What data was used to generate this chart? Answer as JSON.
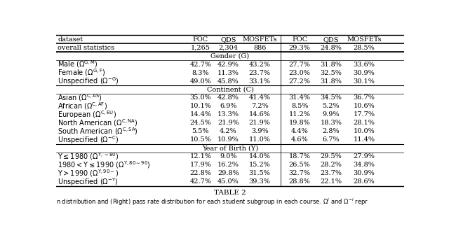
{
  "title": "TABLE 2",
  "caption": "n distribution and (Right) pass rate distribution for each student subgroup in each course. $\\Omega^{I}$ and $\\Omega^{-I}$ repr",
  "header_row": [
    "dataset",
    "FOC",
    "QDS",
    "MOSFETs",
    "FOC",
    "QDS",
    "MOSFETs"
  ],
  "overall_row": [
    "overall statistics",
    "1,265",
    "2,304",
    "886",
    "29.3%",
    "24.8%",
    "28.5%"
  ],
  "sections": [
    {
      "name": "Gender (G)",
      "rows": [
        [
          "$\\mathrm{Male\\ (\\Omega^{G,M})}$",
          "42.7%",
          "42.9%",
          "43.2%",
          "27.7%",
          "31.8%",
          "33.6%"
        ],
        [
          "$\\mathrm{Female\\ (\\Omega^{G,F})}$",
          "8.3%",
          "11.3%",
          "23.7%",
          "23.0%",
          "32.5%",
          "30.9%"
        ],
        [
          "$\\mathrm{Unspecified\\ (\\Omega^{-G})}$",
          "49.0%",
          "45.8%",
          "33.1%",
          "27.2%",
          "31.8%",
          "30.1%"
        ]
      ]
    },
    {
      "name": "Continent (C)",
      "rows": [
        [
          "$\\mathrm{Asian\\ (\\Omega^{C,AS})}$",
          "35.0%",
          "42.8%",
          "41.4%",
          "31.4%",
          "34.5%",
          "36.7%"
        ],
        [
          "$\\mathrm{African\\ (\\Omega^{C,AF})}$",
          "10.1%",
          "6.9%",
          "7.2%",
          "8.5%",
          "5.2%",
          "10.6%"
        ],
        [
          "$\\mathrm{European\\ (\\Omega^{C,EU})}$",
          "14.4%",
          "13.3%",
          "14.6%",
          "11.2%",
          "9.9%",
          "17.7%"
        ],
        [
          "$\\mathrm{North\\ American\\ (\\Omega^{C,NA})}$",
          "24.5%",
          "21.9%",
          "21.9%",
          "19.8%",
          "18.3%",
          "28.1%"
        ],
        [
          "$\\mathrm{South\\ American\\ (\\Omega^{C,SA})}$",
          "5.5%",
          "4.2%",
          "3.9%",
          "4.4%",
          "2.8%",
          "10.0%"
        ],
        [
          "$\\mathrm{Unspecified\\ (\\Omega^{-C})}$",
          "10.5%",
          "10.9%",
          "11.0%",
          "4.6%",
          "6.7%",
          "11.4%"
        ]
      ]
    },
    {
      "name": "Year of Birth (Y)",
      "rows": [
        [
          "$\\mathrm{Y \\leq 1980\\ (\\Omega^{Y,{\\sim}80})}$",
          "12.1%",
          "9.0%",
          "14.0%",
          "18.7%",
          "29.5%",
          "27.9%"
        ],
        [
          "$\\mathrm{1980 < Y \\leq 1990\\ (\\Omega^{Y,80{\\sim}90})}$",
          "17.9%",
          "16.2%",
          "15.2%",
          "26.5%",
          "28.2%",
          "34.8%"
        ],
        [
          "$\\mathrm{Y > 1990\\ (\\Omega^{Y,90{\\sim}})}$",
          "22.8%",
          "29.8%",
          "31.5%",
          "32.7%",
          "23.7%",
          "30.9%"
        ],
        [
          "$\\mathrm{Unspecified\\ (\\Omega^{-Y})}$",
          "42.7%",
          "45.0%",
          "39.3%",
          "28.8%",
          "22.1%",
          "28.6%"
        ]
      ]
    }
  ],
  "bg_color": "#ffffff",
  "text_color": "#000000",
  "font_size": 7.0
}
